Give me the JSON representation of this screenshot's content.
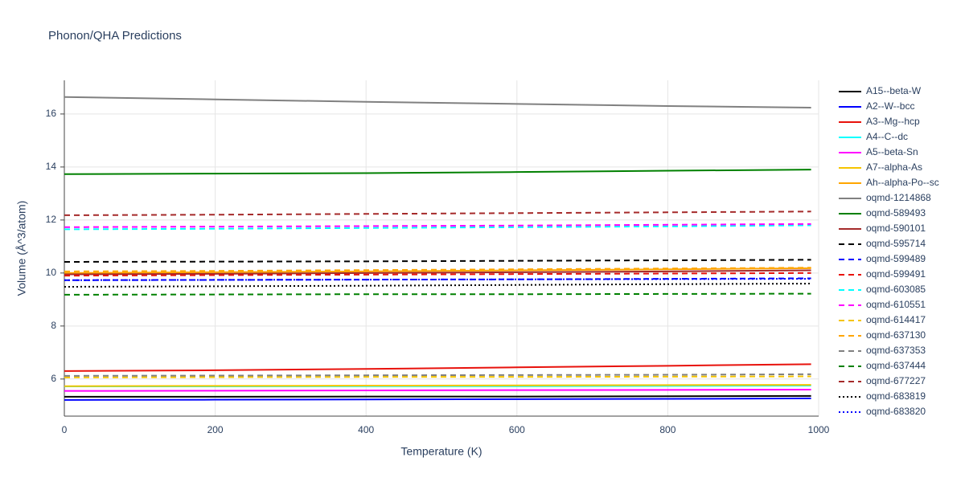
{
  "chart_data": {
    "type": "line",
    "title": "Phonon/QHA Predictions",
    "x_label": "Temperature (K)",
    "y_label": "Volume (Å^3/atom)",
    "x": [
      0,
      200,
      400,
      600,
      800,
      990
    ],
    "xlim": [
      0,
      1000
    ],
    "xticks": [
      0,
      200,
      400,
      600,
      800,
      1000
    ],
    "ylim": [
      4.6,
      17.27
    ],
    "yticks": [
      6,
      8,
      10,
      12,
      14,
      16
    ],
    "grid": true,
    "legend": "right",
    "series": [
      {
        "name": "A15--beta-W",
        "color": "#000000",
        "dash": "solid",
        "values": [
          5.33,
          5.33,
          5.34,
          5.34,
          5.35,
          5.36
        ]
      },
      {
        "name": "A2--W--bcc",
        "color": "#0000ff",
        "dash": "solid",
        "values": [
          5.21,
          5.22,
          5.23,
          5.24,
          5.25,
          5.27
        ]
      },
      {
        "name": "A3--Mg--hcp",
        "color": "#e8120c",
        "dash": "solid",
        "values": [
          6.3,
          6.33,
          6.38,
          6.44,
          6.5,
          6.56
        ]
      },
      {
        "name": "A4--C--dc",
        "color": "#00ffff",
        "dash": "solid",
        "values": [
          5.72,
          5.72,
          5.73,
          5.73,
          5.74,
          5.75
        ]
      },
      {
        "name": "A5--beta-Sn",
        "color": "#ff00ff",
        "dash": "solid",
        "values": [
          5.55,
          5.56,
          5.57,
          5.58,
          5.59,
          5.6
        ]
      },
      {
        "name": "A7--alpha-As",
        "color": "#f5c400",
        "dash": "solid",
        "values": [
          5.73,
          5.74,
          5.75,
          5.76,
          5.77,
          5.78
        ]
      },
      {
        "name": "Ah--alpha-Po--sc",
        "color": "#ffa500",
        "dash": "solid",
        "values": [
          10.0,
          10.03,
          10.06,
          10.1,
          10.14,
          10.18
        ]
      },
      {
        "name": "oqmd-1214868",
        "color": "#808080",
        "dash": "solid",
        "values": [
          16.64,
          16.55,
          16.46,
          16.38,
          16.3,
          16.24
        ]
      },
      {
        "name": "oqmd-589493",
        "color": "#008000",
        "dash": "solid",
        "values": [
          13.73,
          13.75,
          13.77,
          13.81,
          13.86,
          13.9
        ]
      },
      {
        "name": "oqmd-590101",
        "color": "#a52a2a",
        "dash": "solid",
        "values": [
          9.95,
          9.97,
          10.0,
          10.03,
          10.06,
          10.1
        ]
      },
      {
        "name": "oqmd-595714",
        "color": "#000000",
        "dash": "dash",
        "values": [
          10.42,
          10.43,
          10.44,
          10.46,
          10.48,
          10.5
        ]
      },
      {
        "name": "oqmd-599489",
        "color": "#0000ff",
        "dash": "dash",
        "values": [
          9.73,
          9.74,
          9.75,
          9.76,
          9.78,
          9.8
        ]
      },
      {
        "name": "oqmd-599491",
        "color": "#e8120c",
        "dash": "dash",
        "values": [
          9.9,
          9.92,
          9.94,
          9.96,
          9.98,
          10.0
        ]
      },
      {
        "name": "oqmd-603085",
        "color": "#00ffff",
        "dash": "dash",
        "values": [
          11.65,
          11.67,
          11.7,
          11.73,
          11.76,
          11.8
        ]
      },
      {
        "name": "oqmd-610551",
        "color": "#ff00ff",
        "dash": "dash",
        "values": [
          11.73,
          11.75,
          11.77,
          11.79,
          11.82,
          11.85
        ]
      },
      {
        "name": "oqmd-614417",
        "color": "#f5c400",
        "dash": "dash",
        "values": [
          6.06,
          6.07,
          6.08,
          6.08,
          6.09,
          6.1
        ]
      },
      {
        "name": "oqmd-637130",
        "color": "#ffa500",
        "dash": "dash",
        "values": [
          10.06,
          10.08,
          10.11,
          10.14,
          10.17,
          10.2
        ]
      },
      {
        "name": "oqmd-637353",
        "color": "#808080",
        "dash": "dash",
        "values": [
          6.12,
          6.13,
          6.14,
          6.15,
          6.16,
          6.18
        ]
      },
      {
        "name": "oqmd-637444",
        "color": "#008000",
        "dash": "dash",
        "values": [
          9.18,
          9.19,
          9.2,
          9.2,
          9.21,
          9.22
        ]
      },
      {
        "name": "oqmd-677227",
        "color": "#a52a2a",
        "dash": "dash",
        "values": [
          12.18,
          12.2,
          12.23,
          12.26,
          12.29,
          12.32
        ]
      },
      {
        "name": "oqmd-683819",
        "color": "#000000",
        "dash": "dot",
        "values": [
          9.48,
          9.5,
          9.52,
          9.55,
          9.58,
          9.6
        ]
      },
      {
        "name": "oqmd-683820",
        "color": "#0000ff",
        "dash": "dot",
        "values": [
          9.73,
          9.74,
          9.75,
          9.76,
          9.77,
          9.78
        ]
      }
    ]
  }
}
